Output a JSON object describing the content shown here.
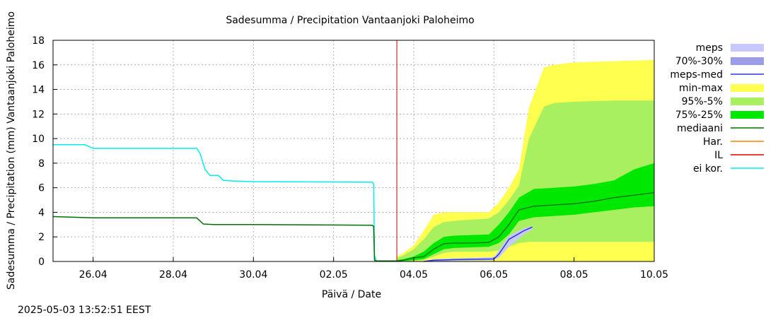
{
  "timestamp": "2025-05-03 13:52:51 EEST",
  "chart_data": {
    "type": "line",
    "title": "Sadesumma / Precipitation  Vantaanjoki Paloheimo",
    "xlabel": "Päivä / Date",
    "ylabel": "Sadesumma / Precipitation (mm)  Vantaanjoki Paloheimo",
    "x_range_days": [
      "2025-04-25",
      "2025-05-10"
    ],
    "x_tick_labels": [
      "26.04",
      "28.04",
      "30.04",
      "02.05",
      "04.05",
      "06.05",
      "08.05",
      "10.05"
    ],
    "x_tick_dates": [
      "2025-04-26",
      "2025-04-28",
      "2025-04-30",
      "2025-05-02",
      "2025-05-04",
      "2025-05-06",
      "2025-05-08",
      "2025-05-10"
    ],
    "ylim": [
      0,
      18
    ],
    "y_ticks": [
      "0",
      "2",
      "4",
      "6",
      "8",
      "10",
      "12",
      "14",
      "16",
      "18"
    ],
    "grid": true,
    "legend_position": "right",
    "forecast_start": "2025-05-03 13:52",
    "legend": [
      {
        "key": "meps",
        "label": "meps",
        "kind": "band",
        "color": "#c8c8ff"
      },
      {
        "key": "meps7030",
        "label": "70%-30%",
        "kind": "band",
        "color": "#9c9ce8"
      },
      {
        "key": "meps_med",
        "label": "meps-med",
        "kind": "line",
        "color": "#2a36d8"
      },
      {
        "key": "minmax",
        "label": "min-max",
        "kind": "band",
        "color": "#ffff50"
      },
      {
        "key": "p95_5",
        "label": "95%-5%",
        "kind": "band",
        "color": "#a8f060"
      },
      {
        "key": "p75_25",
        "label": "75%-25%",
        "kind": "band",
        "color": "#00e800"
      },
      {
        "key": "mediaani",
        "label": "mediaani",
        "kind": "line",
        "color": "#007000"
      },
      {
        "key": "har",
        "label": "Har.",
        "kind": "line",
        "color": "#ff8000"
      },
      {
        "key": "il",
        "label": "IL",
        "kind": "line",
        "color": "#e00000"
      },
      {
        "key": "ei_kor",
        "label": "ei kor.",
        "kind": "line",
        "color": "#00eeee"
      }
    ],
    "series": {
      "ei_kor": {
        "x": [
          "2025-04-25 00:00",
          "2025-04-25 19:00",
          "2025-04-26 00:00",
          "2025-04-28 14:00",
          "2025-04-28 16:00",
          "2025-04-28 19:00",
          "2025-04-28 22:00",
          "2025-04-29 03:00",
          "2025-04-29 06:00",
          "2025-04-29 12:00",
          "2025-04-30 00:00",
          "2025-05-02 23:00",
          "2025-05-03 00:00",
          "2025-05-03 00:30",
          "2025-05-03 01:30",
          "2025-05-03 02:00"
        ],
        "y": [
          9.5,
          9.5,
          9.2,
          9.2,
          8.8,
          7.5,
          7.0,
          7.0,
          6.6,
          6.55,
          6.5,
          6.45,
          6.3,
          0.5,
          0.05,
          0.0
        ]
      },
      "mediaani_observed": {
        "x": [
          "2025-04-25 00:00",
          "2025-04-26 00:00",
          "2025-04-28 14:00",
          "2025-04-28 18:00",
          "2025-04-29 00:00",
          "2025-04-30 00:00",
          "2025-05-02 23:00",
          "2025-05-03 00:00",
          "2025-05-03 00:30",
          "2025-05-03 01:30"
        ],
        "y": [
          3.65,
          3.55,
          3.55,
          3.05,
          3.0,
          3.0,
          2.95,
          2.85,
          0.1,
          0.05
        ]
      },
      "mediaani": {
        "x": [
          "2025-05-03 01:30",
          "2025-05-03 13:52",
          "2025-05-03 18:00",
          "2025-05-04 00:00",
          "2025-05-04 06:00",
          "2025-05-04 12:00",
          "2025-05-04 18:00",
          "2025-05-05 00:00",
          "2025-05-05 12:00",
          "2025-05-05 21:00",
          "2025-05-06 03:00",
          "2025-05-06 09:00",
          "2025-05-06 15:00",
          "2025-05-07 00:00",
          "2025-05-07 12:00",
          "2025-05-08 00:00",
          "2025-05-08 12:00",
          "2025-05-09 00:00",
          "2025-05-09 12:00",
          "2025-05-10 00:00"
        ],
        "y": [
          0.05,
          0.05,
          0.1,
          0.3,
          0.4,
          1.0,
          1.45,
          1.5,
          1.5,
          1.55,
          2.0,
          3.0,
          4.2,
          4.5,
          4.6,
          4.7,
          4.9,
          5.2,
          5.4,
          5.6
        ]
      },
      "meps_med": {
        "x": [
          "2025-05-04 06:00",
          "2025-05-04 12:00",
          "2025-05-05 00:00",
          "2025-05-06 00:00",
          "2025-05-06 03:00",
          "2025-05-06 09:00",
          "2025-05-06 18:00",
          "2025-05-06 23:00"
        ],
        "y": [
          0.0,
          0.1,
          0.15,
          0.2,
          0.6,
          1.8,
          2.5,
          2.8
        ]
      },
      "p75_25": {
        "x": [
          "2025-05-03 13:52",
          "2025-05-03 18:00",
          "2025-05-04 00:00",
          "2025-05-04 06:00",
          "2025-05-04 12:00",
          "2025-05-04 18:00",
          "2025-05-05 00:00",
          "2025-05-05 21:00",
          "2025-05-06 03:00",
          "2025-05-06 09:00",
          "2025-05-06 15:00",
          "2025-05-07 00:00",
          "2025-05-08 00:00",
          "2025-05-08 12:00",
          "2025-05-09 00:00",
          "2025-05-09 12:00",
          "2025-05-10 00:00"
        ],
        "low": [
          0.0,
          0.05,
          0.1,
          0.2,
          0.6,
          1.0,
          1.1,
          1.2,
          1.5,
          2.2,
          3.3,
          3.6,
          3.8,
          4.0,
          4.2,
          4.4,
          4.5
        ],
        "high": [
          0.1,
          0.2,
          0.4,
          0.8,
          1.5,
          2.0,
          2.1,
          2.2,
          3.0,
          4.0,
          5.2,
          5.9,
          6.1,
          6.3,
          6.6,
          7.5,
          8.0
        ]
      },
      "p95_5": {
        "x": [
          "2025-05-03 13:52",
          "2025-05-03 18:00",
          "2025-05-04 00:00",
          "2025-05-04 06:00",
          "2025-05-04 12:00",
          "2025-05-04 18:00",
          "2025-05-05 00:00",
          "2025-05-05 21:00",
          "2025-05-06 03:00",
          "2025-05-06 09:00",
          "2025-05-06 15:00",
          "2025-05-06 21:00",
          "2025-05-07 06:00",
          "2025-05-07 12:00",
          "2025-05-08 00:00",
          "2025-05-09 00:00",
          "2025-05-10 00:00"
        ],
        "low": [
          0.0,
          0.0,
          0.05,
          0.1,
          0.4,
          0.7,
          0.8,
          0.8,
          0.9,
          1.2,
          1.5,
          1.6,
          1.6,
          1.6,
          1.6,
          1.6,
          1.6
        ],
        "high": [
          0.3,
          0.5,
          1.0,
          1.8,
          2.8,
          3.2,
          3.3,
          3.5,
          4.0,
          5.0,
          6.2,
          10.0,
          12.6,
          12.9,
          13.0,
          13.1,
          13.1
        ]
      },
      "minmax": {
        "x": [
          "2025-05-03 13:52",
          "2025-05-03 18:00",
          "2025-05-04 00:00",
          "2025-05-04 06:00",
          "2025-05-04 12:00",
          "2025-05-04 18:00",
          "2025-05-05 00:00",
          "2025-05-05 21:00",
          "2025-05-06 03:00",
          "2025-05-06 09:00",
          "2025-05-06 15:00",
          "2025-05-06 21:00",
          "2025-05-07 06:00",
          "2025-05-07 12:00",
          "2025-05-08 00:00",
          "2025-05-09 00:00",
          "2025-05-10 00:00"
        ],
        "low": [
          0.0,
          0.0,
          0.0,
          0.0,
          0.0,
          0.0,
          0.0,
          0.0,
          0.0,
          0.0,
          0.0,
          0.0,
          0.0,
          0.0,
          0.0,
          0.0,
          0.0
        ],
        "high": [
          0.4,
          0.7,
          1.3,
          2.5,
          3.8,
          4.0,
          4.0,
          4.0,
          4.8,
          6.0,
          7.5,
          12.5,
          15.8,
          16.0,
          16.2,
          16.3,
          16.4
        ]
      },
      "meps": {
        "x": [
          "2025-05-04 06:00",
          "2025-05-04 12:00",
          "2025-05-05 00:00",
          "2025-05-06 00:00",
          "2025-05-06 03:00",
          "2025-05-06 09:00",
          "2025-05-06 18:00",
          "2025-05-06 23:00"
        ],
        "low": [
          0.0,
          0.0,
          0.05,
          0.1,
          0.3,
          1.2,
          2.2,
          2.6
        ],
        "high": [
          0.05,
          0.2,
          0.25,
          0.35,
          0.9,
          2.1,
          2.7,
          2.9
        ]
      }
    }
  }
}
